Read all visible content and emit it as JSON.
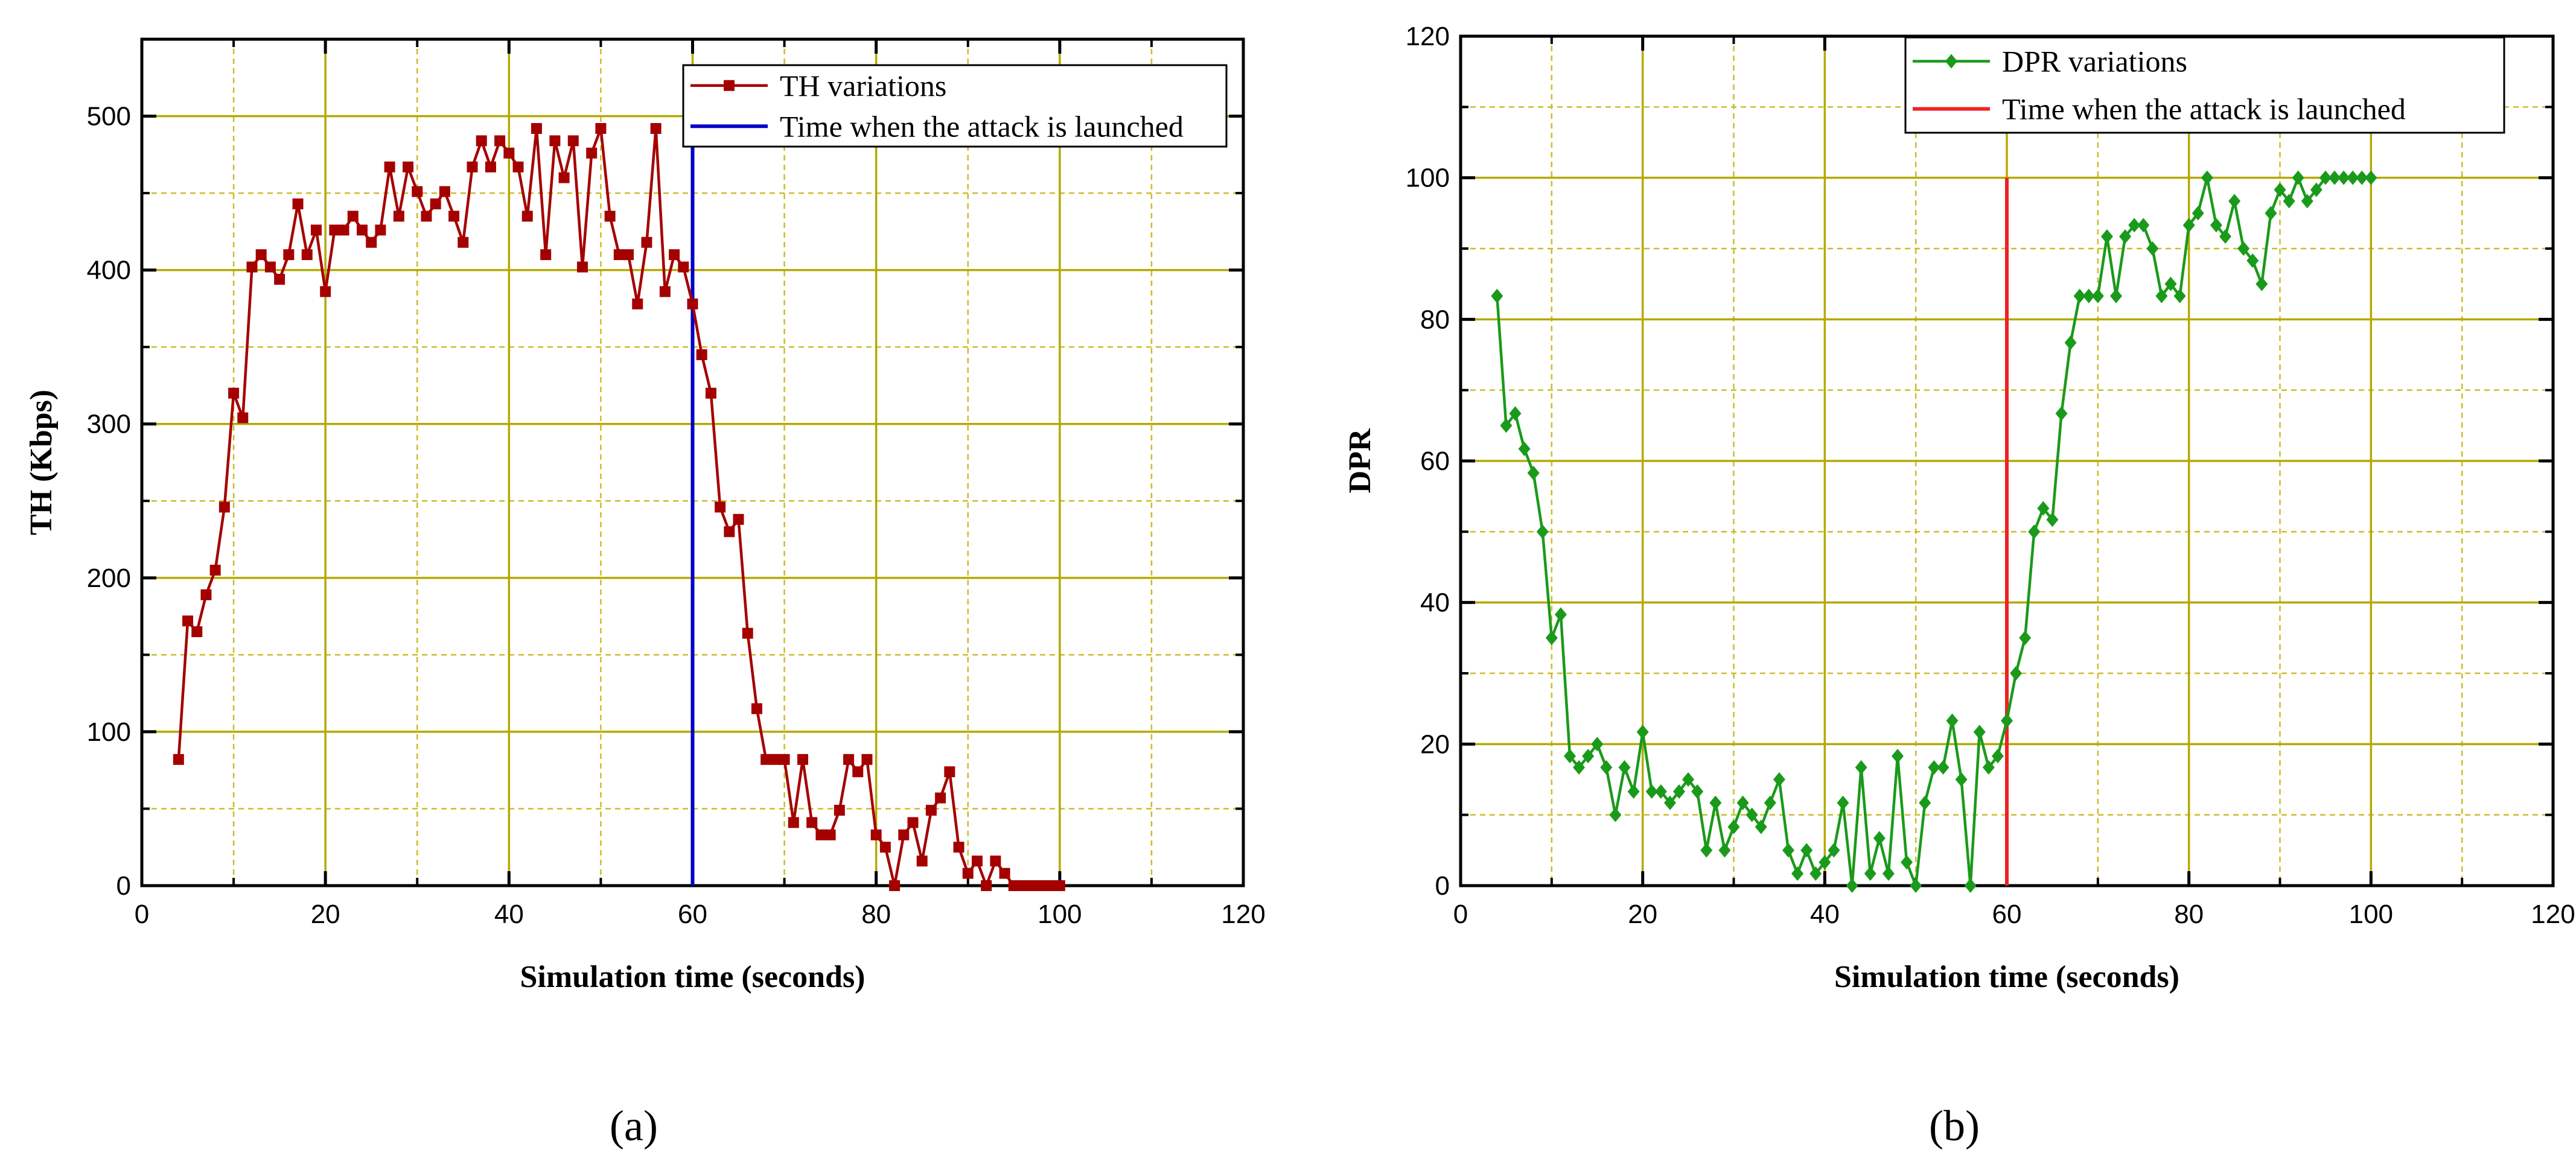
{
  "panel_labels": [
    "(a)",
    "(b)"
  ],
  "colors": {
    "grid_major": "#b5a900",
    "grid_minor": "#c9bd2a",
    "axis": "#000000"
  },
  "chart_data": [
    {
      "type": "line",
      "panel": "(a)",
      "title": "",
      "xlabel": "Simulation time (seconds)",
      "ylabel": "TH (Kbps)",
      "xlim": [
        0,
        120
      ],
      "ylim": [
        0,
        550
      ],
      "xticks": [
        0,
        20,
        40,
        60,
        80,
        100,
        120
      ],
      "yticks": [
        0,
        100,
        200,
        300,
        400,
        500
      ],
      "x_minor_step": 10,
      "y_minor_step": 50,
      "grid": true,
      "legend_position": "top-right",
      "series": [
        {
          "name": "TH variations",
          "color": "#a50000",
          "marker": "square",
          "x": [
            4,
            5,
            6,
            7,
            8,
            9,
            10,
            11,
            12,
            13,
            14,
            15,
            16,
            17,
            18,
            19,
            20,
            21,
            22,
            23,
            24,
            25,
            26,
            27,
            28,
            29,
            30,
            31,
            32,
            33,
            34,
            35,
            36,
            37,
            38,
            39,
            40,
            41,
            42,
            43,
            44,
            45,
            46,
            47,
            48,
            49,
            50,
            51,
            52,
            53,
            54,
            55,
            56,
            57,
            58,
            59,
            60,
            61,
            62,
            63,
            64,
            65,
            66,
            67,
            68,
            69,
            70,
            71,
            72,
            73,
            74,
            75,
            76,
            77,
            78,
            79,
            80,
            81,
            82,
            83,
            84,
            85,
            86,
            87,
            88,
            89,
            90,
            91,
            92,
            93,
            94,
            95,
            96,
            97,
            98,
            99,
            100
          ],
          "y": [
            82,
            172,
            165,
            189,
            205,
            246,
            320,
            304,
            402,
            410,
            402,
            394,
            410,
            443,
            410,
            426,
            386,
            426,
            426,
            435,
            426,
            418,
            426,
            467,
            435,
            467,
            451,
            435,
            443,
            451,
            435,
            418,
            467,
            484,
            467,
            484,
            476,
            467,
            435,
            492,
            410,
            484,
            460,
            484,
            402,
            476,
            492,
            435,
            410,
            410,
            378,
            418,
            492,
            386,
            410,
            402,
            378,
            345,
            320,
            246,
            230,
            238,
            164,
            115,
            82,
            82,
            82,
            41,
            82,
            41,
            33,
            33,
            49,
            82,
            74,
            82,
            33,
            25,
            0,
            33,
            41,
            16,
            49,
            57,
            74,
            25,
            8,
            16,
            0,
            16,
            8,
            0,
            0,
            0,
            0,
            0,
            0
          ]
        },
        {
          "name": "Time when the attack is launched",
          "color": "#0000c8",
          "x": [
            60,
            60
          ],
          "y": [
            0,
            530
          ]
        }
      ]
    },
    {
      "type": "line",
      "panel": "(b)",
      "title": "",
      "xlabel": "Simulation time (seconds)",
      "ylabel": "DPR",
      "xlim": [
        0,
        120
      ],
      "ylim": [
        0,
        120
      ],
      "xticks": [
        0,
        20,
        40,
        60,
        80,
        100,
        120
      ],
      "yticks": [
        0,
        20,
        40,
        60,
        80,
        100,
        120
      ],
      "x_minor_step": 10,
      "y_minor_step": 10,
      "grid": true,
      "legend_position": "top-right",
      "series": [
        {
          "name": "DPR variations",
          "color": "#1a9a1a",
          "marker": "diamond",
          "x": [
            4,
            5,
            6,
            7,
            8,
            9,
            10,
            11,
            12,
            13,
            14,
            15,
            16,
            17,
            18,
            19,
            20,
            21,
            22,
            23,
            24,
            25,
            26,
            27,
            28,
            29,
            30,
            31,
            32,
            33,
            34,
            35,
            36,
            37,
            38,
            39,
            40,
            41,
            42,
            43,
            44,
            45,
            46,
            47,
            48,
            49,
            50,
            51,
            52,
            53,
            54,
            55,
            56,
            57,
            58,
            59,
            60,
            61,
            62,
            63,
            64,
            65,
            66,
            67,
            68,
            69,
            70,
            71,
            72,
            73,
            74,
            75,
            76,
            77,
            78,
            79,
            80,
            81,
            82,
            83,
            84,
            85,
            86,
            87,
            88,
            89,
            90,
            91,
            92,
            93,
            94,
            95,
            96,
            97,
            98,
            99,
            100
          ],
          "y": [
            83.3,
            65,
            66.7,
            61.7,
            58.3,
            50,
            35,
            38.3,
            18.3,
            16.7,
            18.3,
            20,
            16.7,
            10,
            16.7,
            13.3,
            21.7,
            13.3,
            13.3,
            11.7,
            13.3,
            15,
            13.3,
            5,
            11.7,
            5,
            8.3,
            11.7,
            10,
            8.3,
            11.7,
            15,
            5,
            1.7,
            5,
            1.7,
            3.3,
            5,
            11.7,
            0,
            16.7,
            1.7,
            6.7,
            1.7,
            18.3,
            3.3,
            0,
            11.7,
            16.7,
            16.7,
            23.3,
            15,
            0,
            21.7,
            16.7,
            18.3,
            23.3,
            30,
            35,
            50,
            53.3,
            51.7,
            66.7,
            76.7,
            83.3,
            83.3,
            83.3,
            91.7,
            83.3,
            91.7,
            93.3,
            93.3,
            90,
            83.3,
            85,
            83.3,
            93.3,
            95,
            100,
            93.3,
            91.7,
            96.7,
            90,
            88.3,
            85,
            95,
            98.3,
            96.7,
            100,
            96.7,
            98.3,
            100,
            100,
            100,
            100,
            100,
            100
          ]
        },
        {
          "name": "Time when the attack is launched",
          "color": "#ee2222",
          "x": [
            60,
            60
          ],
          "y": [
            0,
            100
          ]
        }
      ]
    }
  ]
}
